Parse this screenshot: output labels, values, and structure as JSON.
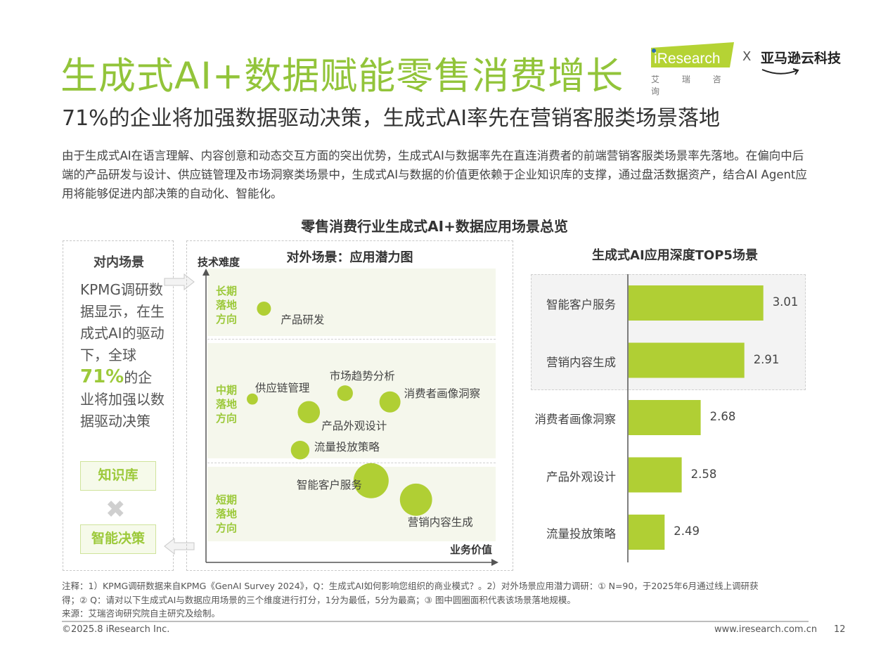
{
  "header": {
    "title": "生成式AI+数据赋能零售消费增长",
    "subtitle": "71%的企业将加强数据驱动决策，生成式AI率先在营销客服类场景落地",
    "logo": {
      "brand": "iResearch",
      "brand_cn": "艾 瑞 咨 询",
      "separator": "X",
      "partner": "亚马逊云科技"
    },
    "accent_color": "#92C43A"
  },
  "intro": "由于生成式AI在语言理解、内容创意和动态交互方面的突出优势，生成式AI与数据率先在直连消费者的前端营销客服类场景率先落地。在偏向中后端的产品研发与设计、供应链管理及市场洞察类场景中，生成式AI与数据的价值更依赖于企业知识库的支撑，通过盘活数据资产，结合AI Agent应用将能够促进内部决策的自动化、智能化。",
  "overview_title": "零售消费行业生成式AI+数据应用场景总览",
  "internal": {
    "title": "对内场景",
    "text_before": "KPMG调研数据显示，在生成式AI的驱动下，全球",
    "highlight": "71%",
    "text_after": "的企业将加强以数据驱动决策",
    "tag1": "知识库",
    "tag2": "智能决策",
    "operator_icon": "multiply-icon"
  },
  "chart_data": [
    {
      "type": "scatter",
      "title": "对外场景：应用潜力图",
      "xlabel": "业务价值",
      "ylabel": "技术难度",
      "xlim": [
        2,
        4
      ],
      "ylim": [
        2,
        4
      ],
      "grid": false,
      "bands": [
        {
          "label": "长期落地方向",
          "range": [
            3.45,
            3.9
          ]
        },
        {
          "label": "中期落地方向",
          "range": [
            2.7,
            3.5
          ]
        },
        {
          "label": "短期落地方向",
          "range": [
            2.05,
            2.65
          ]
        }
      ],
      "points": [
        {
          "name": "产品研发",
          "x": 2.4,
          "y": 3.74,
          "size": 4
        },
        {
          "name": "供应链管理",
          "x": 2.32,
          "y": 3.12,
          "size": 2.5
        },
        {
          "name": "市场趋势分析",
          "x": 2.96,
          "y": 3.16,
          "size": 5
        },
        {
          "name": "消费者画像洞察",
          "x": 3.27,
          "y": 3.1,
          "size": 9
        },
        {
          "name": "产品外观设计",
          "x": 2.71,
          "y": 3.03,
          "size": 10
        },
        {
          "name": "流量投放策略",
          "x": 2.65,
          "y": 2.77,
          "size": 7
        },
        {
          "name": "智能客户服务",
          "x": 3.14,
          "y": 2.56,
          "size": 25
        },
        {
          "name": "营销内容生成",
          "x": 3.45,
          "y": 2.43,
          "size": 21
        }
      ],
      "color": "#B0CF34"
    },
    {
      "type": "bar",
      "orientation": "horizontal",
      "title": "生成式AI应用深度TOP5场景",
      "categories": [
        "智能客户服务",
        "营销内容生成",
        "消费者画像洞察",
        "产品外观设计",
        "流量投放策略"
      ],
      "values": [
        3.01,
        2.91,
        2.68,
        2.58,
        2.49
      ],
      "xlim": [
        2.3,
        3.2
      ],
      "highlighted": [
        "智能客户服务",
        "营销内容生成"
      ],
      "color": "#B0CF34"
    }
  ],
  "notes": [
    "注释：1）KPMG调研数据来自KPMG《GenAI Survey 2024》，Q：生成式AI如何影响您组织的商业模式？。2）对外场景应用潜力调研：① N=90，于2025年6月通过线上调研获",
    "得；② Q：请对以下生成式AI与数据应用场景的三个维度进行打分，1分为最低，5分为最高；③ 图中圆圈面积代表该场景落地规模。",
    "来源：艾瑞咨询研究院自主研究及绘制。"
  ],
  "footer": {
    "copyright": "©2025.8 iResearch Inc.",
    "website": "www.iresearch.com.cn",
    "page": "12"
  }
}
